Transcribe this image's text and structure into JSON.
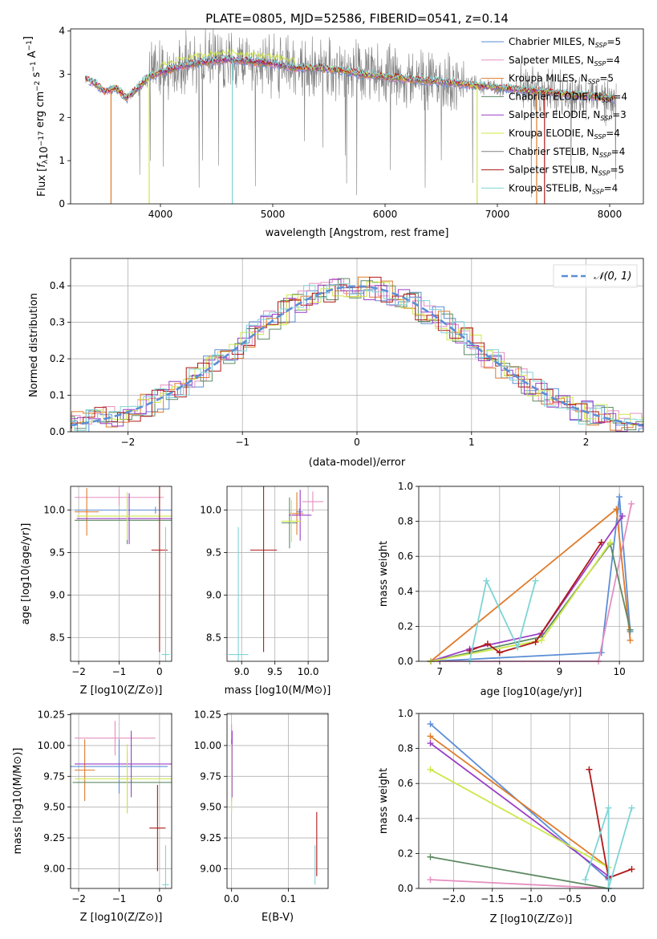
{
  "figure": {
    "title": "PLATE=0805, MJD=52586, FIBERID=0541, z=0.14"
  },
  "colors": {
    "Chabrier MILES": "#5b8ed6",
    "Salpeter MILES": "#e58fc0",
    "Kroupa MILES": "#e07b2a",
    "Chabrier ELODIE": "#5e8a63",
    "Salpeter ELODIE": "#9b3fc7",
    "Kroupa ELODIE": "#cde84a",
    "Chabrier STELIB": "#808080",
    "Salpeter STELIB": "#b01818",
    "Kroupa STELIB": "#7fd4d6",
    "gauss": "#5b8ed6"
  },
  "chart_data": [
    {
      "id": "spectrum",
      "type": "line",
      "xlabel": "wavelength [Angstrom, rest frame]",
      "ylabel": "Flux [f_λ 10^-17 erg cm^-2 s^-1 A^-1]",
      "xlim": [
        3200,
        8300
      ],
      "ylim": [
        0,
        4.05
      ],
      "xticks": [
        4000,
        5000,
        6000,
        7000,
        8000
      ],
      "yticks": [
        0,
        1,
        2,
        3,
        4
      ],
      "legend_position": "top-right",
      "legend": [
        {
          "model": "Chabrier MILES",
          "label": "Chabrier MILES, N",
          "nssp": "=5"
        },
        {
          "model": "Salpeter MILES",
          "label": "Salpeter MILES, N",
          "nssp": "=4"
        },
        {
          "model": "Kroupa MILES",
          "label": "Kroupa MILES, N",
          "nssp": "=5"
        },
        {
          "model": "Chabrier ELODIE",
          "label": "Chabrier ELODIE, N",
          "nssp": "=4"
        },
        {
          "model": "Salpeter ELODIE",
          "label": "Salpeter ELODIE, N",
          "nssp": "=3"
        },
        {
          "model": "Kroupa ELODIE",
          "label": "Kroupa ELODIE, N",
          "nssp": "=4"
        },
        {
          "model": "Chabrier STELIB",
          "label": "Chabrier STELIB, N",
          "nssp": "=4"
        },
        {
          "model": "Salpeter STELIB",
          "label": "Salpeter STELIB, N",
          "nssp": "=5"
        },
        {
          "model": "Kroupa STELIB",
          "label": "Kroupa STELIB, N",
          "nssp": "=4"
        }
      ],
      "continuum": [
        [
          3300,
          2.9
        ],
        [
          3420,
          2.8
        ],
        [
          3500,
          2.6
        ],
        [
          3600,
          2.7
        ],
        [
          3700,
          2.45
        ],
        [
          3800,
          2.7
        ],
        [
          3900,
          2.95
        ],
        [
          4000,
          3.05
        ],
        [
          4200,
          3.2
        ],
        [
          4400,
          3.3
        ],
        [
          4600,
          3.35
        ],
        [
          4800,
          3.3
        ],
        [
          5000,
          3.25
        ],
        [
          5200,
          3.15
        ],
        [
          5400,
          3.15
        ],
        [
          5600,
          3.1
        ],
        [
          5800,
          3.0
        ],
        [
          6000,
          2.95
        ],
        [
          6200,
          2.9
        ],
        [
          6400,
          2.85
        ],
        [
          6600,
          2.8
        ],
        [
          6800,
          2.75
        ],
        [
          7000,
          2.7
        ],
        [
          7200,
          2.65
        ],
        [
          7400,
          2.6
        ],
        [
          7600,
          2.55
        ],
        [
          7800,
          2.5
        ],
        [
          8050,
          2.45
        ]
      ]
    },
    {
      "id": "residuals",
      "type": "line",
      "xlabel": "(data-model)/error",
      "ylabel": "Normed distribution",
      "xlim": [
        -2.5,
        2.5
      ],
      "ylim": [
        0,
        0.475
      ],
      "xticks": [
        -2,
        -1,
        0,
        1,
        2
      ],
      "yticks": [
        0,
        0.1,
        0.2,
        0.3,
        0.4
      ],
      "legend_position": "top-right",
      "legend": "𝒩(0, 1)",
      "reference_curve": "normal pdf, mean 0, sigma 1"
    },
    {
      "id": "age-vs-Z",
      "type": "scatter",
      "xlabel": "Z [log10(Z/Z⊙)]",
      "ylabel": "age  [log10(age/yr)]",
      "xlim": [
        -2.2,
        0.3
      ],
      "ylim": [
        8.22,
        10.28
      ],
      "xticks": [
        -2,
        -1,
        0
      ],
      "yticks": [
        8.5,
        9.0,
        9.5,
        10.0
      ],
      "errorbars": [
        {
          "model": "Chabrier MILES",
          "x": -0.1,
          "xerr": 2.0,
          "y": 10.0,
          "yerr": 0.04
        },
        {
          "model": "Salpeter MILES",
          "x": -1.0,
          "xerr": 1.1,
          "y": 10.15,
          "yerr": 0.1
        },
        {
          "model": "Kroupa MILES",
          "x": -1.8,
          "xerr": 0.3,
          "y": 9.98,
          "yerr": 0.28
        },
        {
          "model": "Chabrier ELODIE",
          "x": -0.8,
          "xerr": 1.3,
          "y": 9.88,
          "yerr": 0.28
        },
        {
          "model": "Salpeter ELODIE",
          "x": -0.75,
          "xerr": 1.3,
          "y": 9.9,
          "yerr": 0.3
        },
        {
          "model": "Kroupa ELODIE",
          "x": -0.8,
          "xerr": 1.25,
          "y": 9.93,
          "yerr": 0.28
        },
        {
          "model": "Salpeter STELIB",
          "x": 0.0,
          "xerr": 0.2,
          "y": 9.53,
          "yerr": 1.2
        },
        {
          "model": "Kroupa STELIB",
          "x": 0.15,
          "xerr": 0.1,
          "y": 8.3,
          "yerr": 1.5
        }
      ]
    },
    {
      "id": "age-vs-mass",
      "type": "scatter",
      "xlabel": "mass [log10(M/M⊙)]",
      "ylabel": "",
      "xlim": [
        8.78,
        10.3
      ],
      "ylim": [
        8.22,
        10.28
      ],
      "xticks": [
        9.0,
        9.5,
        10.0
      ],
      "yticks": [
        8.5,
        9.0,
        9.5,
        10.0
      ],
      "errorbars": [
        {
          "model": "Chabrier MILES",
          "x": 9.87,
          "xerr": 0.05,
          "y": 9.98,
          "yerr": 0.04
        },
        {
          "model": "Salpeter MILES",
          "x": 10.07,
          "xerr": 0.16,
          "y": 10.1,
          "yerr": 0.12
        },
        {
          "model": "Kroupa MILES",
          "x": 9.83,
          "xerr": 0.1,
          "y": 9.96,
          "yerr": 0.25
        },
        {
          "model": "Chabrier ELODIE",
          "x": 9.72,
          "xerr": 0.12,
          "y": 9.85,
          "yerr": 0.3
        },
        {
          "model": "Salpeter ELODIE",
          "x": 9.88,
          "xerr": 0.17,
          "y": 9.94,
          "yerr": 0.3
        },
        {
          "model": "Kroupa ELODIE",
          "x": 9.75,
          "xerr": 0.15,
          "y": 9.87,
          "yerr": 0.25
        },
        {
          "model": "Salpeter STELIB",
          "x": 9.33,
          "xerr": 0.2,
          "y": 9.53,
          "yerr": 1.2
        },
        {
          "model": "Kroupa STELIB",
          "x": 8.95,
          "xerr": 0.15,
          "y": 8.3,
          "yerr": 1.5
        }
      ]
    },
    {
      "id": "weight-vs-age",
      "type": "line",
      "xlabel": "age  [log10(age/yr)]",
      "ylabel": "mass weight",
      "xlim": [
        6.65,
        10.4
      ],
      "ylim": [
        0,
        1
      ],
      "xticks": [
        7,
        8,
        9,
        10
      ],
      "yticks": [
        0.0,
        0.2,
        0.4,
        0.6,
        0.8,
        1.0
      ],
      "series": [
        {
          "model": "Chabrier MILES",
          "x": [
            6.85,
            9.7,
            10.0,
            10.18
          ],
          "y": [
            0.0,
            0.05,
            0.94,
            0.17
          ]
        },
        {
          "model": "Salpeter MILES",
          "x": [
            6.85,
            9.65,
            10.2
          ],
          "y": [
            0.0,
            0.0,
            0.9
          ]
        },
        {
          "model": "Kroupa MILES",
          "x": [
            6.85,
            9.95,
            10.18
          ],
          "y": [
            0.0,
            0.87,
            0.12
          ]
        },
        {
          "model": "Chabrier ELODIE",
          "x": [
            6.85,
            8.7,
            9.85,
            10.18
          ],
          "y": [
            0.0,
            0.14,
            0.67,
            0.18
          ]
        },
        {
          "model": "Salpeter ELODIE",
          "x": [
            6.85,
            7.5,
            8.7,
            10.05
          ],
          "y": [
            0.0,
            0.07,
            0.16,
            0.83
          ]
        },
        {
          "model": "Kroupa ELODIE",
          "x": [
            6.85,
            8.7,
            9.85
          ],
          "y": [
            0.0,
            0.12,
            0.68
          ]
        },
        {
          "model": "Salpeter STELIB",
          "x": [
            7.5,
            7.8,
            8.0,
            8.6,
            9.7
          ],
          "y": [
            0.06,
            0.1,
            0.05,
            0.11,
            0.68
          ]
        },
        {
          "model": "Kroupa STELIB",
          "x": [
            7.5,
            7.78,
            8.3,
            8.6
          ],
          "y": [
            0.0,
            0.46,
            0.08,
            0.46
          ]
        }
      ]
    },
    {
      "id": "mass-vs-Z",
      "type": "scatter",
      "xlabel": "Z [log10(Z/Z⊙)]",
      "ylabel": "mass [log10(M/M⊙)]",
      "xlim": [
        -2.2,
        0.3
      ],
      "ylim": [
        8.84,
        10.26
      ],
      "xticks": [
        -2,
        -1,
        0
      ],
      "yticks": [
        9.0,
        9.25,
        9.5,
        9.75,
        10.0,
        10.25
      ],
      "errorbars": [
        {
          "model": "Chabrier MILES",
          "x": -1.0,
          "xerr": 1.2,
          "y": 9.83,
          "yerr": 0.22
        },
        {
          "model": "Salpeter MILES",
          "x": -1.1,
          "xerr": 1.0,
          "y": 10.06,
          "yerr": 0.14
        },
        {
          "model": "Kroupa MILES",
          "x": -1.85,
          "xerr": 0.25,
          "y": 9.8,
          "yerr": 0.25
        },
        {
          "model": "Chabrier ELODIE",
          "x": -0.8,
          "xerr": 1.35,
          "y": 9.7,
          "yerr": 0.25
        },
        {
          "model": "Salpeter ELODIE",
          "x": -0.7,
          "xerr": 1.4,
          "y": 9.85,
          "yerr": 0.27
        },
        {
          "model": "Kroupa ELODIE",
          "x": -0.8,
          "xerr": 1.3,
          "y": 9.73,
          "yerr": 0.28
        },
        {
          "model": "Salpeter STELIB",
          "x": -0.05,
          "xerr": 0.2,
          "y": 9.33,
          "yerr": 0.35
        },
        {
          "model": "Kroupa STELIB",
          "x": 0.15,
          "xerr": 0.08,
          "y": 8.87,
          "yerr": 0.32
        }
      ]
    },
    {
      "id": "mass-vs-EBV",
      "type": "scatter",
      "xlabel": "E(B-V)",
      "ylabel": "",
      "xlim": [
        -0.008,
        0.17
      ],
      "ylim": [
        8.84,
        10.26
      ],
      "xticks": [
        0.0,
        0.1
      ],
      "yticks": [
        9.0,
        9.25,
        9.5,
        9.75,
        10.0,
        10.25
      ],
      "errorbars": [
        {
          "model": "Salpeter MILES",
          "x": 0.0,
          "xerr": 0.0,
          "y": 10.05,
          "yerr": 0.12
        },
        {
          "model": "Kroupa MILES",
          "x": 0.0,
          "xerr": 0.0,
          "y": 9.8,
          "yerr": 0.25
        },
        {
          "model": "Salpeter ELODIE",
          "x": 0.001,
          "xerr": 0.0,
          "y": 9.85,
          "yerr": 0.27
        },
        {
          "model": "Kroupa ELODIE",
          "x": 0.0,
          "xerr": 0.0,
          "y": 9.73,
          "yerr": 0.28
        },
        {
          "model": "Salpeter STELIB",
          "x": 0.15,
          "xerr": 0.0,
          "y": 9.2,
          "yerr": 0.26
        },
        {
          "model": "Kroupa STELIB",
          "x": 0.147,
          "xerr": 0.0,
          "y": 9.03,
          "yerr": 0.16
        }
      ]
    },
    {
      "id": "weight-vs-Z",
      "type": "line",
      "xlabel": "Z [log10(Z/Z⊙)]",
      "ylabel": "mass weight",
      "xlim": [
        -2.45,
        0.45
      ],
      "ylim": [
        0,
        1
      ],
      "xticks": [
        -2.0,
        -1.5,
        -1.0,
        -0.5,
        0.0
      ],
      "yticks": [
        0.0,
        0.2,
        0.4,
        0.6,
        0.8,
        1.0
      ],
      "series": [
        {
          "model": "Chabrier MILES",
          "x": [
            -2.3,
            0.0
          ],
          "y": [
            0.94,
            0.05
          ]
        },
        {
          "model": "Salpeter MILES",
          "x": [
            -2.3,
            0.0
          ],
          "y": [
            0.05,
            0.0
          ]
        },
        {
          "model": "Kroupa MILES",
          "x": [
            -2.3,
            0.0
          ],
          "y": [
            0.87,
            0.12
          ]
        },
        {
          "model": "Chabrier ELODIE",
          "x": [
            -2.3,
            0.0
          ],
          "y": [
            0.18,
            0.0
          ]
        },
        {
          "model": "Salpeter ELODIE",
          "x": [
            -2.3,
            0.0
          ],
          "y": [
            0.83,
            0.07
          ]
        },
        {
          "model": "Kroupa ELODIE",
          "x": [
            -2.3,
            0.0
          ],
          "y": [
            0.68,
            0.12
          ]
        },
        {
          "model": "Salpeter STELIB",
          "x": [
            -0.25,
            0.0,
            0.3
          ],
          "y": [
            0.68,
            0.06,
            0.11
          ]
        },
        {
          "model": "Kroupa STELIB",
          "x": [
            -0.3,
            0.0,
            0.0,
            0.3
          ],
          "y": [
            0.05,
            0.46,
            0.0,
            0.46
          ]
        }
      ]
    }
  ]
}
